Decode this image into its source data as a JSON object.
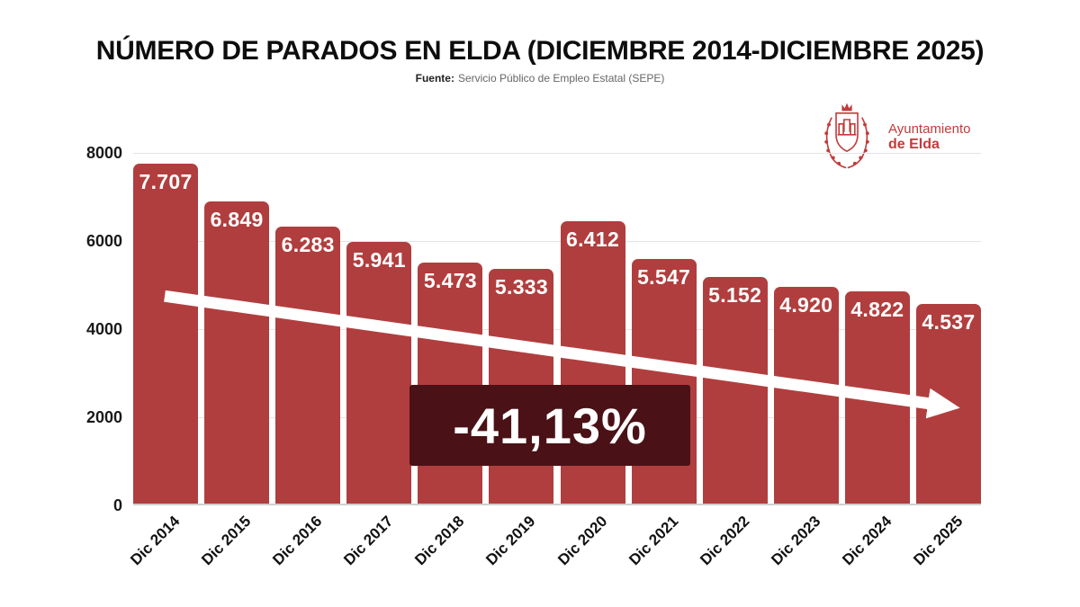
{
  "title": "NÚMERO DE PARADOS EN ELDA (DICIEMBRE 2014-DICIEMBRE 2025)",
  "source": {
    "label": "Fuente:",
    "text": "Servicio Público de Empleo Estatal (SEPE)"
  },
  "logo": {
    "line1": "Ayuntamiento",
    "line2": "de Elda"
  },
  "annotation": "-41,13%",
  "colors": {
    "bar": "#b13e3e",
    "annotation_bg": "#4a1216",
    "logo_red": "#c23b3b",
    "grid": "#e4e4e4"
  },
  "chart_data": {
    "type": "bar",
    "title": "NÚMERO DE PARADOS EN ELDA (DICIEMBRE 2014-DICIEMBRE 2025)",
    "xlabel": "",
    "ylabel": "",
    "categories": [
      "Dic 2014",
      "Dic 2015",
      "Dic 2016",
      "Dic 2017",
      "Dic 2018",
      "Dic 2019",
      "Dic 2020",
      "Dic 2021",
      "Dic 2022",
      "Dic 2023",
      "Dic 2024",
      "Dic 2025"
    ],
    "values": [
      7707,
      6849,
      6283,
      5941,
      5473,
      5333,
      6412,
      5547,
      5152,
      4920,
      4822,
      4537
    ],
    "labels": [
      "7.707",
      "6.849",
      "6.283",
      "5.941",
      "5.473",
      "5.333",
      "6.412",
      "5.547",
      "5.152",
      "4.920",
      "4.822",
      "4.537"
    ],
    "yticks": [
      0,
      2000,
      4000,
      6000,
      8000
    ],
    "ylim": [
      0,
      8000
    ],
    "grid": true,
    "legend": false,
    "trend_annotation": "-41,13%",
    "trend_arrow": {
      "start_value": 4750,
      "end_value": 2300
    }
  }
}
